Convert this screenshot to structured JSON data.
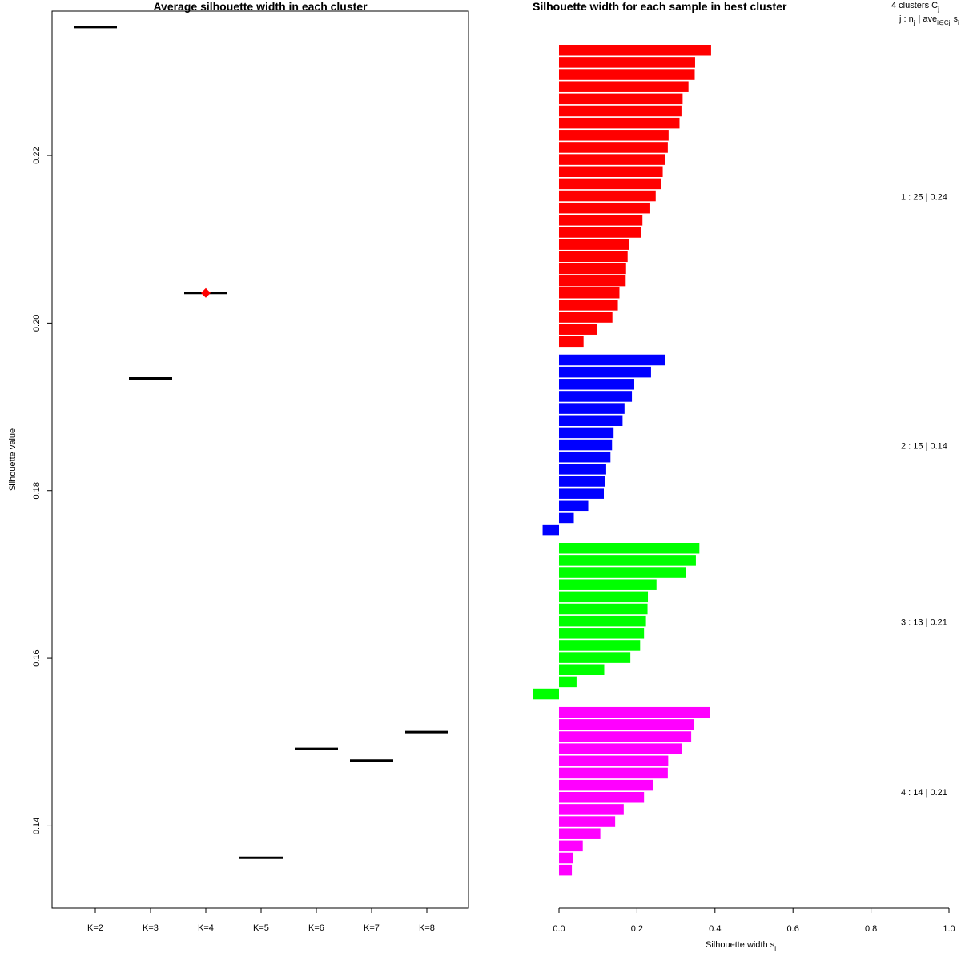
{
  "chart_data": [
    {
      "type": "line",
      "title": "Average silhouette width in each cluster",
      "xlabel": "",
      "ylabel": "Silhouette value",
      "categories": [
        "K=2",
        "K=3",
        "K=4",
        "K=5",
        "K=6",
        "K=7",
        "K=8"
      ],
      "values": [
        0.2353,
        0.1934,
        0.2036,
        0.1362,
        0.1492,
        0.1478,
        0.1512
      ],
      "yticks": [
        0.14,
        0.16,
        0.18,
        0.2,
        0.22
      ],
      "ytick_labels": [
        "0.14",
        "0.16",
        "0.18",
        "0.20",
        "0.22"
      ],
      "ylim": [
        0.1302,
        0.2372
      ],
      "best_k": "K=4",
      "best_marker_color": "#ff0000",
      "segment_color": "#000000"
    },
    {
      "type": "bar",
      "title": "Silhouette width for each sample in best cluster",
      "overlay_title": "Silhouette",
      "xlabel": "Silhouette width s",
      "xlabel_subscript": "i",
      "xticks": [
        0.0,
        0.2,
        0.4,
        0.6,
        0.8,
        1.0
      ],
      "xtick_labels": [
        "0.0",
        "0.2",
        "0.4",
        "0.6",
        "0.8",
        "1.0"
      ],
      "xlim": [
        0,
        1
      ],
      "legend": {
        "line1_main": "4  clusters  C",
        "line1_sub": "j",
        "line2_a": "j :  n",
        "line2_a_sub": "j",
        "line2_b": "| ave",
        "line2_b_sub": "i∈Cj",
        "line2_c": "s",
        "line2_c_sub": "i"
      },
      "clusters": [
        {
          "id": 1,
          "n": 25,
          "avg": "0.24",
          "label": "1 :  25  |  0.24",
          "color": "#ff0000",
          "values": [
            0.39,
            0.349,
            0.348,
            0.332,
            0.317,
            0.314,
            0.309,
            0.281,
            0.279,
            0.273,
            0.266,
            0.262,
            0.248,
            0.234,
            0.214,
            0.211,
            0.18,
            0.176,
            0.172,
            0.171,
            0.155,
            0.151,
            0.137,
            0.098,
            0.063
          ]
        },
        {
          "id": 2,
          "n": 15,
          "avg": "0.14",
          "label": "2 :  15  |  0.14",
          "color": "#0000ff",
          "values": [
            0.272,
            0.236,
            0.193,
            0.187,
            0.168,
            0.163,
            0.14,
            0.136,
            0.132,
            0.121,
            0.118,
            0.115,
            0.075,
            0.038,
            -0.042
          ]
        },
        {
          "id": 3,
          "n": 13,
          "avg": "0.21",
          "label": "3 :  13  |  0.21",
          "color": "#00ff00",
          "values": [
            0.36,
            0.351,
            0.326,
            0.25,
            0.228,
            0.227,
            0.223,
            0.218,
            0.208,
            0.183,
            0.116,
            0.045,
            -0.067
          ]
        },
        {
          "id": 4,
          "n": 14,
          "avg": "0.21",
          "label": "4 :  14  |  0.21",
          "color": "#ff00ff",
          "values": [
            0.387,
            0.345,
            0.339,
            0.316,
            0.28,
            0.279,
            0.242,
            0.218,
            0.166,
            0.144,
            0.106,
            0.061,
            0.036,
            0.033
          ]
        }
      ]
    }
  ]
}
